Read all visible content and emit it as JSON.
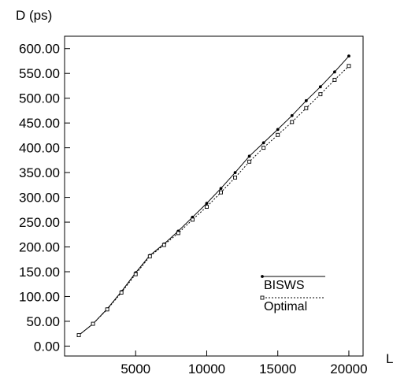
{
  "chart_data": {
    "type": "line",
    "title": "",
    "ylabel": "D (ps)",
    "xlabel": "L",
    "xlim": [
      0,
      21000
    ],
    "ylim": [
      -20,
      625
    ],
    "grid": false,
    "legend_position": "lower-right",
    "x_ticks": [
      5000,
      10000,
      15000,
      20000
    ],
    "x_tick_labels": [
      "5000",
      "10000",
      "15000",
      "20000"
    ],
    "y_ticks": [
      0,
      50,
      100,
      150,
      200,
      250,
      300,
      350,
      400,
      450,
      500,
      550,
      600
    ],
    "y_tick_labels": [
      "0.00",
      "50.00",
      "100.00",
      "150.00",
      "200.00",
      "250.00",
      "300.00",
      "350.00",
      "400.00",
      "450.00",
      "500.00",
      "550.00",
      "600.00"
    ],
    "x": [
      1000,
      2000,
      3000,
      4000,
      5000,
      6000,
      7000,
      8000,
      9000,
      10000,
      11000,
      12000,
      13000,
      14000,
      15000,
      16000,
      17000,
      18000,
      19000,
      20000
    ],
    "series": [
      {
        "name": "BISWS",
        "line_style": "solid",
        "marker": "filled-dot",
        "color": "#000000",
        "values": [
          22,
          45,
          75,
          110,
          148,
          183,
          206,
          232,
          260,
          288,
          318,
          350,
          383,
          410,
          437,
          465,
          495,
          523,
          553,
          585
        ]
      },
      {
        "name": "Optimal",
        "line_style": "dotted",
        "marker": "open-square",
        "color": "#000000",
        "values": [
          22,
          45,
          74,
          108,
          145,
          181,
          204,
          228,
          255,
          281,
          310,
          340,
          372,
          400,
          426,
          452,
          480,
          508,
          537,
          565
        ]
      }
    ]
  }
}
